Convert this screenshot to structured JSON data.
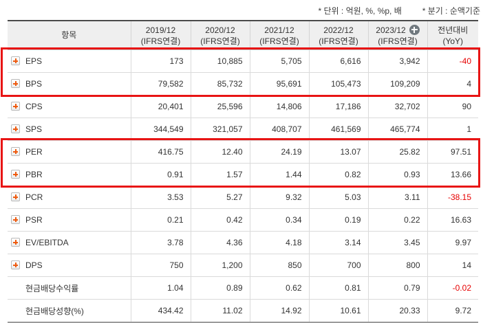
{
  "notes": {
    "unit": "* 단위 : 억원, %, %p, 배",
    "basis": "* 분기 : 순액기준"
  },
  "table": {
    "item_header": "항목",
    "columns": [
      {
        "period": "2019/12",
        "standard": "(IFRS연결)"
      },
      {
        "period": "2020/12",
        "standard": "(IFRS연결)"
      },
      {
        "period": "2021/12",
        "standard": "(IFRS연결)"
      },
      {
        "period": "2022/12",
        "standard": "(IFRS연결)"
      },
      {
        "period": "2023/12",
        "standard": "(IFRS연결)",
        "add_icon": "plus-circle-icon"
      }
    ],
    "yoy_header": {
      "line1": "전년대비",
      "line2": "(YoY)"
    },
    "rows": [
      {
        "label": "EPS",
        "expandable": true,
        "values": [
          "173",
          "10,885",
          "5,705",
          "6,616",
          "3,942"
        ],
        "yoy": "-40",
        "highlight_group": "1"
      },
      {
        "label": "BPS",
        "expandable": true,
        "values": [
          "79,582",
          "85,732",
          "95,691",
          "105,473",
          "109,209"
        ],
        "yoy": "4",
        "highlight_group": "1"
      },
      {
        "label": "CPS",
        "expandable": true,
        "values": [
          "20,401",
          "25,596",
          "14,806",
          "17,186",
          "32,702"
        ],
        "yoy": "90"
      },
      {
        "label": "SPS",
        "expandable": true,
        "values": [
          "344,549",
          "321,057",
          "408,707",
          "461,569",
          "465,774"
        ],
        "yoy": "1"
      },
      {
        "label": "PER",
        "expandable": true,
        "values": [
          "416.75",
          "12.40",
          "24.19",
          "13.07",
          "25.82"
        ],
        "yoy": "97.51",
        "highlight_group": "2"
      },
      {
        "label": "PBR",
        "expandable": true,
        "values": [
          "0.91",
          "1.57",
          "1.44",
          "0.82",
          "0.93"
        ],
        "yoy": "13.66",
        "highlight_group": "2"
      },
      {
        "label": "PCR",
        "expandable": true,
        "values": [
          "3.53",
          "5.27",
          "9.32",
          "5.03",
          "3.11"
        ],
        "yoy": "-38.15"
      },
      {
        "label": "PSR",
        "expandable": true,
        "values": [
          "0.21",
          "0.42",
          "0.34",
          "0.19",
          "0.22"
        ],
        "yoy": "16.63"
      },
      {
        "label": "EV/EBITDA",
        "expandable": true,
        "values": [
          "3.78",
          "4.36",
          "4.18",
          "3.14",
          "3.45"
        ],
        "yoy": "9.97"
      },
      {
        "label": "DPS",
        "expandable": true,
        "values": [
          "750",
          "1,200",
          "850",
          "700",
          "800"
        ],
        "yoy": "14"
      },
      {
        "label": "현금배당수익률",
        "expandable": false,
        "values": [
          "1.04",
          "0.89",
          "0.62",
          "0.81",
          "0.79"
        ],
        "yoy": "-0.02"
      },
      {
        "label": "현금배당성향(%)",
        "expandable": false,
        "values": [
          "434.42",
          "11.02",
          "14.92",
          "10.61",
          "20.33"
        ],
        "yoy": "9.72"
      }
    ]
  },
  "colors": {
    "negative_text": "#e60000",
    "highlight_border": "#e81414",
    "header_background": "#efefef",
    "expand_plus_orange": "#ee5a0f",
    "add_icon_gray": "#70787e"
  }
}
